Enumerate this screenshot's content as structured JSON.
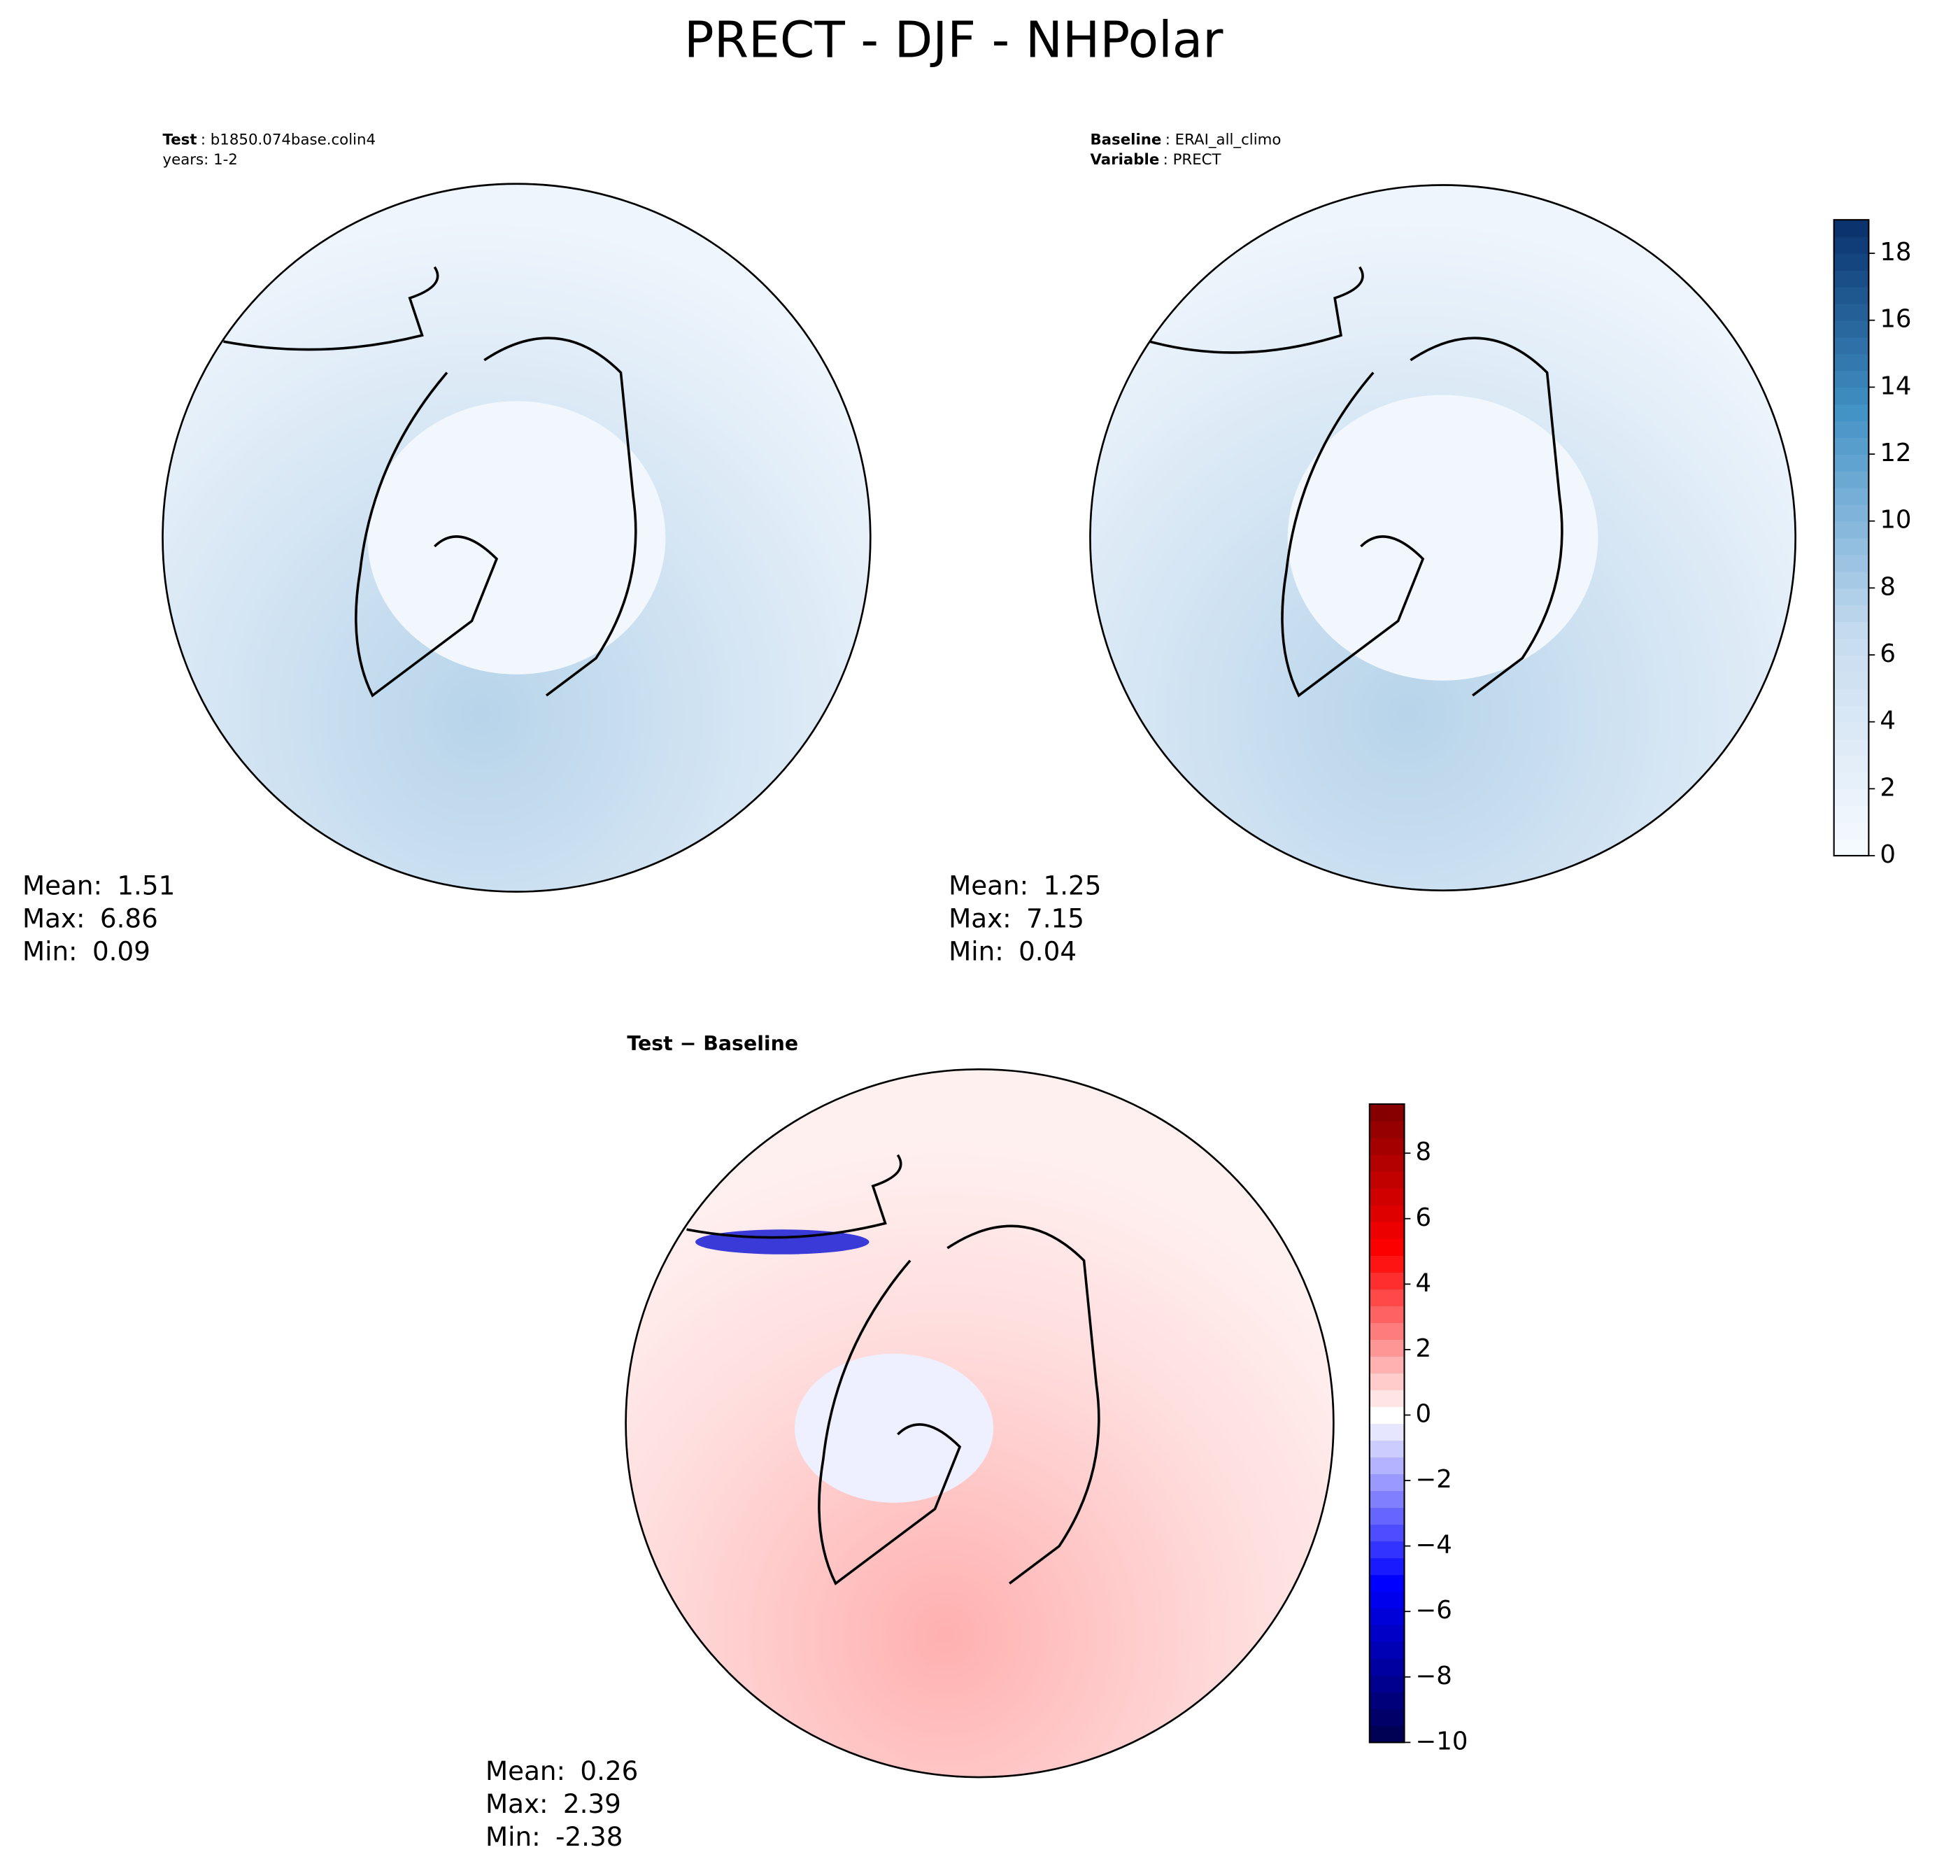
{
  "title": "PRECT - DJF - NHPolar",
  "panels": [
    {
      "header": [
        {
          "label": "Test",
          "text": ": b1850.074base.colin4"
        },
        {
          "text": "years: 1-2"
        }
      ],
      "stats": [
        {
          "label": "Mean:",
          "value": 1.51
        },
        {
          "label": "Max:",
          "value": 6.86
        },
        {
          "label": "Min:",
          "value": 0.09
        }
      ]
    },
    {
      "header": [
        {
          "label": "Baseline",
          "text": ": ERAI_all_climo"
        },
        {
          "label": "Variable",
          "text": ": PRECT"
        }
      ],
      "stats": [
        {
          "label": "Mean:",
          "value": 1.25
        },
        {
          "label": "Max:",
          "value": 7.15
        },
        {
          "label": "Min:",
          "value": 0.04
        }
      ]
    },
    {
      "header": [
        {
          "label": "Test − Baseline"
        }
      ],
      "stats": [
        {
          "label": "Mean:",
          "value": 0.26
        },
        {
          "label": "Max:",
          "value": 2.39
        },
        {
          "label": "Min:",
          "value": -2.38
        }
      ]
    }
  ],
  "colorbars": [
    {
      "lim": [
        0,
        19
      ],
      "ticks": [
        0,
        2,
        4,
        6,
        8,
        10,
        12,
        14,
        16,
        18
      ]
    },
    {
      "lim": [
        -10,
        9.5
      ],
      "ticks": [
        {
          "value": -10,
          "label": "−10"
        },
        {
          "value": -8,
          "label": "−8"
        },
        {
          "value": -6,
          "label": "−6"
        },
        {
          "value": -4,
          "label": "−4"
        },
        {
          "value": -2,
          "label": "−2"
        },
        0,
        2,
        4,
        6,
        8
      ]
    }
  ]
}
